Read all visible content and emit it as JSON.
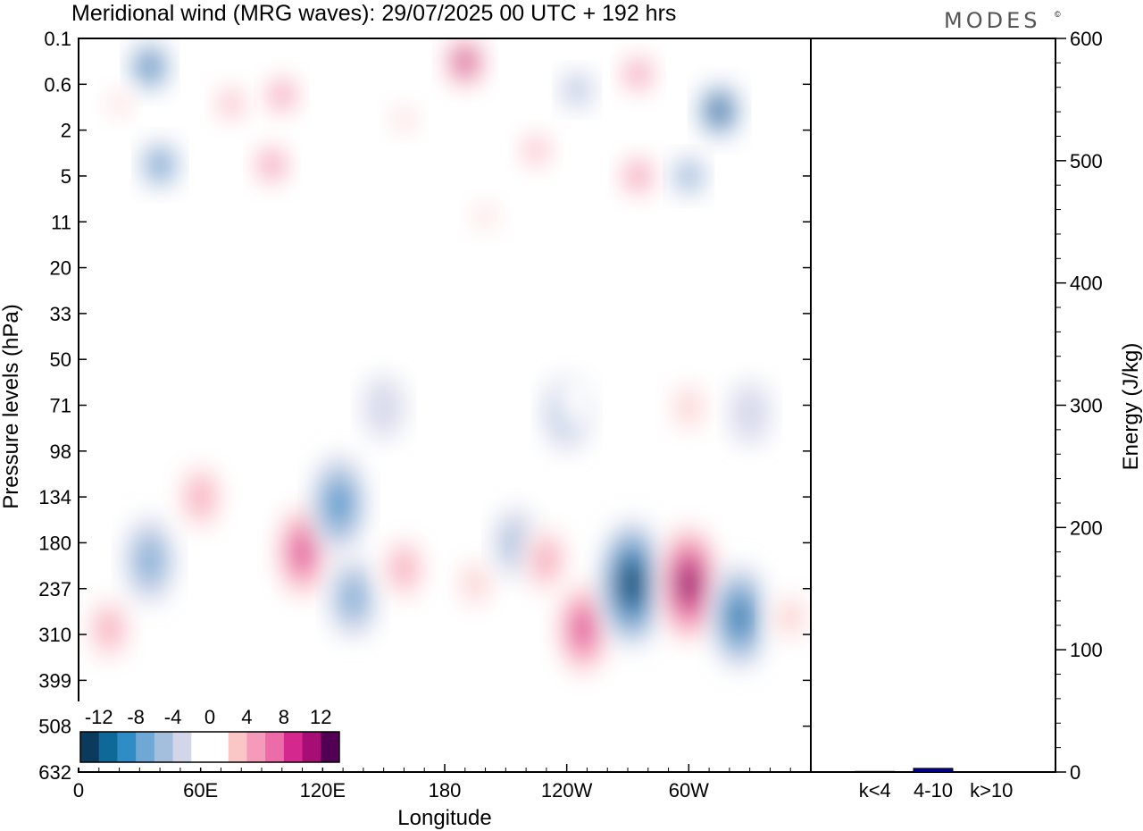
{
  "chart_data": [
    {
      "type": "heatmap",
      "title": "Meridional wind (MRG waves):  29/07/2025  00 UTC  + 192 hrs",
      "brand": "MODES",
      "brand_mark": "©",
      "xlabel": "Longitude",
      "ylabel": "Pressure levels (hPa)",
      "x_ticks": [
        "0",
        "60E",
        "120E",
        "180",
        "120W",
        "60W"
      ],
      "x_tick_degrees": [
        0,
        60,
        120,
        180,
        240,
        300
      ],
      "xlim": [
        0,
        360
      ],
      "y_ticks": [
        "0.1",
        "0.6",
        "2",
        "5",
        "11",
        "20",
        "33",
        "50",
        "71",
        "98",
        "134",
        "180",
        "237",
        "310",
        "399",
        "508",
        "632"
      ],
      "colorbar_labels": [
        "-12",
        "-8",
        "-4",
        "0",
        "4",
        "8",
        "12"
      ],
      "colorbar_levels": [
        -14,
        -12,
        -10,
        -8,
        -6,
        -4,
        -2,
        2,
        4,
        6,
        8,
        10,
        12,
        14
      ],
      "colorbar_colors": [
        "#0c3a5c",
        "#0e6898",
        "#2f8cc4",
        "#6fa8d4",
        "#a4bedd",
        "#d3d5e9",
        "#ffffff",
        "#ffffff",
        "#fbc6c6",
        "#f59bb9",
        "#ec6ca8",
        "#d5288e",
        "#a60e76",
        "#520053"
      ],
      "features": [
        {
          "lon": 35,
          "level": 0.3,
          "v": -10
        },
        {
          "lon": 40,
          "level": 4,
          "v": -9
        },
        {
          "lon": 20,
          "level": 1,
          "v": 4
        },
        {
          "lon": 75,
          "level": 1,
          "v": 7
        },
        {
          "lon": 95,
          "level": 4,
          "v": 9
        },
        {
          "lon": 100,
          "level": 0.8,
          "v": 8
        },
        {
          "lon": 130,
          "level": 2,
          "v": 3
        },
        {
          "lon": 160,
          "level": 1.5,
          "v": 5
        },
        {
          "lon": 190,
          "level": 0.25,
          "v": 13
        },
        {
          "lon": 225,
          "level": 3,
          "v": 7
        },
        {
          "lon": 245,
          "level": 0.7,
          "v": -5
        },
        {
          "lon": 275,
          "level": 0.4,
          "v": 8
        },
        {
          "lon": 275,
          "level": 5,
          "v": 9
        },
        {
          "lon": 315,
          "level": 1.2,
          "v": -12
        },
        {
          "lon": 300,
          "level": 5,
          "v": -6
        },
        {
          "lon": 200,
          "level": 10,
          "v": 4
        },
        {
          "lon": 330,
          "level": 75,
          "v": -3
        },
        {
          "lon": 150,
          "level": 72,
          "v": -3
        },
        {
          "lon": 300,
          "level": 72,
          "v": 5
        },
        {
          "lon": 240,
          "level": 75,
          "v": -5
        },
        {
          "lon": 245,
          "level": 68,
          "v": 3
        },
        {
          "lon": 15,
          "level": 300,
          "v": 6
        },
        {
          "lon": 35,
          "level": 200,
          "v": -7
        },
        {
          "lon": 60,
          "level": 134,
          "v": 7
        },
        {
          "lon": 110,
          "level": 190,
          "v": 11
        },
        {
          "lon": 128,
          "level": 140,
          "v": -9
        },
        {
          "lon": 135,
          "level": 250,
          "v": -6
        },
        {
          "lon": 160,
          "level": 210,
          "v": 6
        },
        {
          "lon": 195,
          "level": 230,
          "v": 5
        },
        {
          "lon": 215,
          "level": 180,
          "v": -4
        },
        {
          "lon": 230,
          "level": 200,
          "v": 7
        },
        {
          "lon": 248,
          "level": 300,
          "v": 11
        },
        {
          "lon": 272,
          "level": 230,
          "v": -14
        },
        {
          "lon": 300,
          "level": 230,
          "v": 15
        },
        {
          "lon": 325,
          "level": 280,
          "v": -10
        },
        {
          "lon": 350,
          "level": 280,
          "v": 5
        }
      ]
    },
    {
      "type": "bar",
      "categories": [
        "k<4",
        "4-10",
        "k>10"
      ],
      "values": [
        0.5,
        3,
        0.3
      ],
      "ylabel": "Energy (J/kg)",
      "ylim": [
        0,
        600
      ],
      "y_ticks": [
        0,
        100,
        200,
        300,
        400,
        500,
        600
      ],
      "bar_color": "#000099"
    }
  ]
}
